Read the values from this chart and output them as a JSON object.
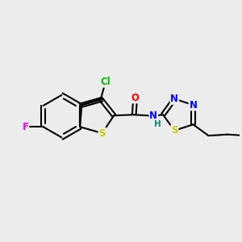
{
  "bg_color": "#ececec",
  "bond_color": "#000000",
  "bond_width": 1.5,
  "atom_colors": {
    "C": "#000000",
    "Cl": "#00bb00",
    "F": "#ee00ee",
    "O": "#ff0000",
    "N": "#0000ff",
    "S": "#cccc00",
    "H": "#008888"
  },
  "font_size": 8.5
}
